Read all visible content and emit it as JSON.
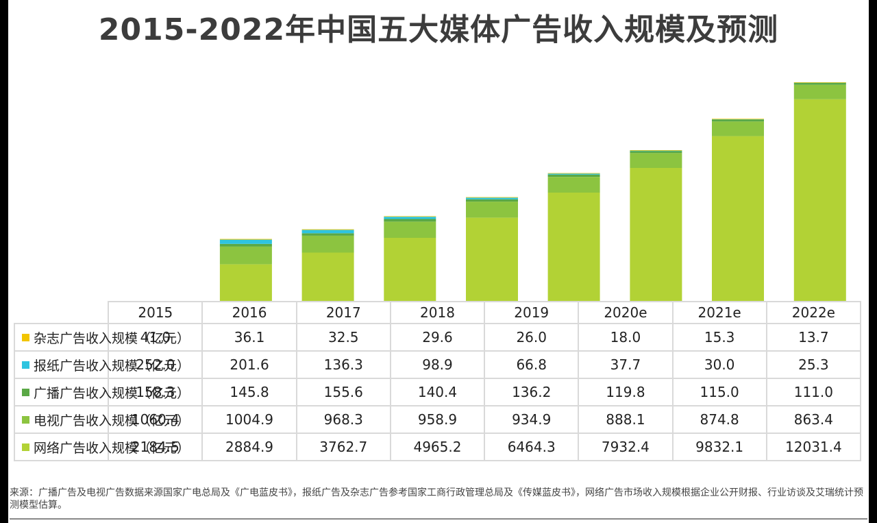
{
  "title": "2015-2022年中国五大媒体广告收入规模及预测",
  "source_text": "来源：广播广告及电视广告数据来源国家广电总局及《广电蓝皮书》，报纸广告及杂志广告参考国家工商行政管理总局及《传媒蓝皮书》，网络广告市场收入规模根据企业公开财报、行业访谈及艾瑞统计预测模型估算。",
  "chart_data": {
    "type": "bar",
    "stacked": true,
    "categories": [
      "2015",
      "2016",
      "2017",
      "2018",
      "2019",
      "2020e",
      "2021e",
      "2022e"
    ],
    "series": [
      {
        "name": "杂志广告收入规模（亿元）",
        "color": "#f2c500",
        "values": [
          41.0,
          36.1,
          32.5,
          29.6,
          26.0,
          18.0,
          15.3,
          13.7
        ]
      },
      {
        "name": "报纸广告收入规模（亿元）",
        "color": "#2ec4e0",
        "values": [
          252.0,
          201.6,
          136.3,
          98.9,
          66.8,
          37.7,
          30.0,
          25.3
        ]
      },
      {
        "name": "广播广告收入规模（亿元）",
        "color": "#5aa845",
        "values": [
          158.3,
          145.8,
          155.6,
          140.4,
          136.2,
          119.8,
          115.0,
          111.0
        ]
      },
      {
        "name": "电视广告收入规模（亿元）",
        "color": "#8cc440",
        "values": [
          1060.4,
          1004.9,
          968.3,
          958.9,
          934.9,
          888.1,
          874.8,
          863.4
        ]
      },
      {
        "name": "网络广告收入规模（亿元）",
        "color": "#b2d235",
        "values": [
          2184.5,
          2884.9,
          3762.7,
          4965.2,
          6464.3,
          7932.4,
          9832.1,
          12031.4
        ]
      }
    ],
    "stack_order": [
      "网络广告收入规模（亿元）",
      "电视广告收入规模（亿元）",
      "广播广告收入规模（亿元）",
      "报纸广告收入规模（亿元）",
      "杂志广告收入规模（亿元）"
    ],
    "grid": false,
    "legend_placement": "data-table-left"
  },
  "table_rows": [
    {
      "label": "杂志广告收入规模（亿元）",
      "color": "#f2c500",
      "cells": [
        "41.0",
        "36.1",
        "32.5",
        "29.6",
        "26.0",
        "18.0",
        "15.3",
        "13.7"
      ]
    },
    {
      "label": "报纸广告收入规模（亿元）",
      "color": "#2ec4e0",
      "cells": [
        "252.0",
        "201.6",
        "136.3",
        "98.9",
        "66.8",
        "37.7",
        "30.0",
        "25.3"
      ]
    },
    {
      "label": "广播广告收入规模（亿元）",
      "color": "#5aa845",
      "cells": [
        "158.3",
        "145.8",
        "155.6",
        "140.4",
        "136.2",
        "119.8",
        "115.0",
        "111.0"
      ]
    },
    {
      "label": "电视广告收入规模（亿元）",
      "color": "#8cc440",
      "cells": [
        "1060.4",
        "1004.9",
        "968.3",
        "958.9",
        "934.9",
        "888.1",
        "874.8",
        "863.4"
      ]
    },
    {
      "label": "网络广告收入规模（亿元）",
      "color": "#b2d235",
      "cells": [
        "2184.5",
        "2884.9",
        "3762.7",
        "4965.2",
        "6464.3",
        "7932.4",
        "9832.1",
        "12031.4"
      ]
    }
  ]
}
